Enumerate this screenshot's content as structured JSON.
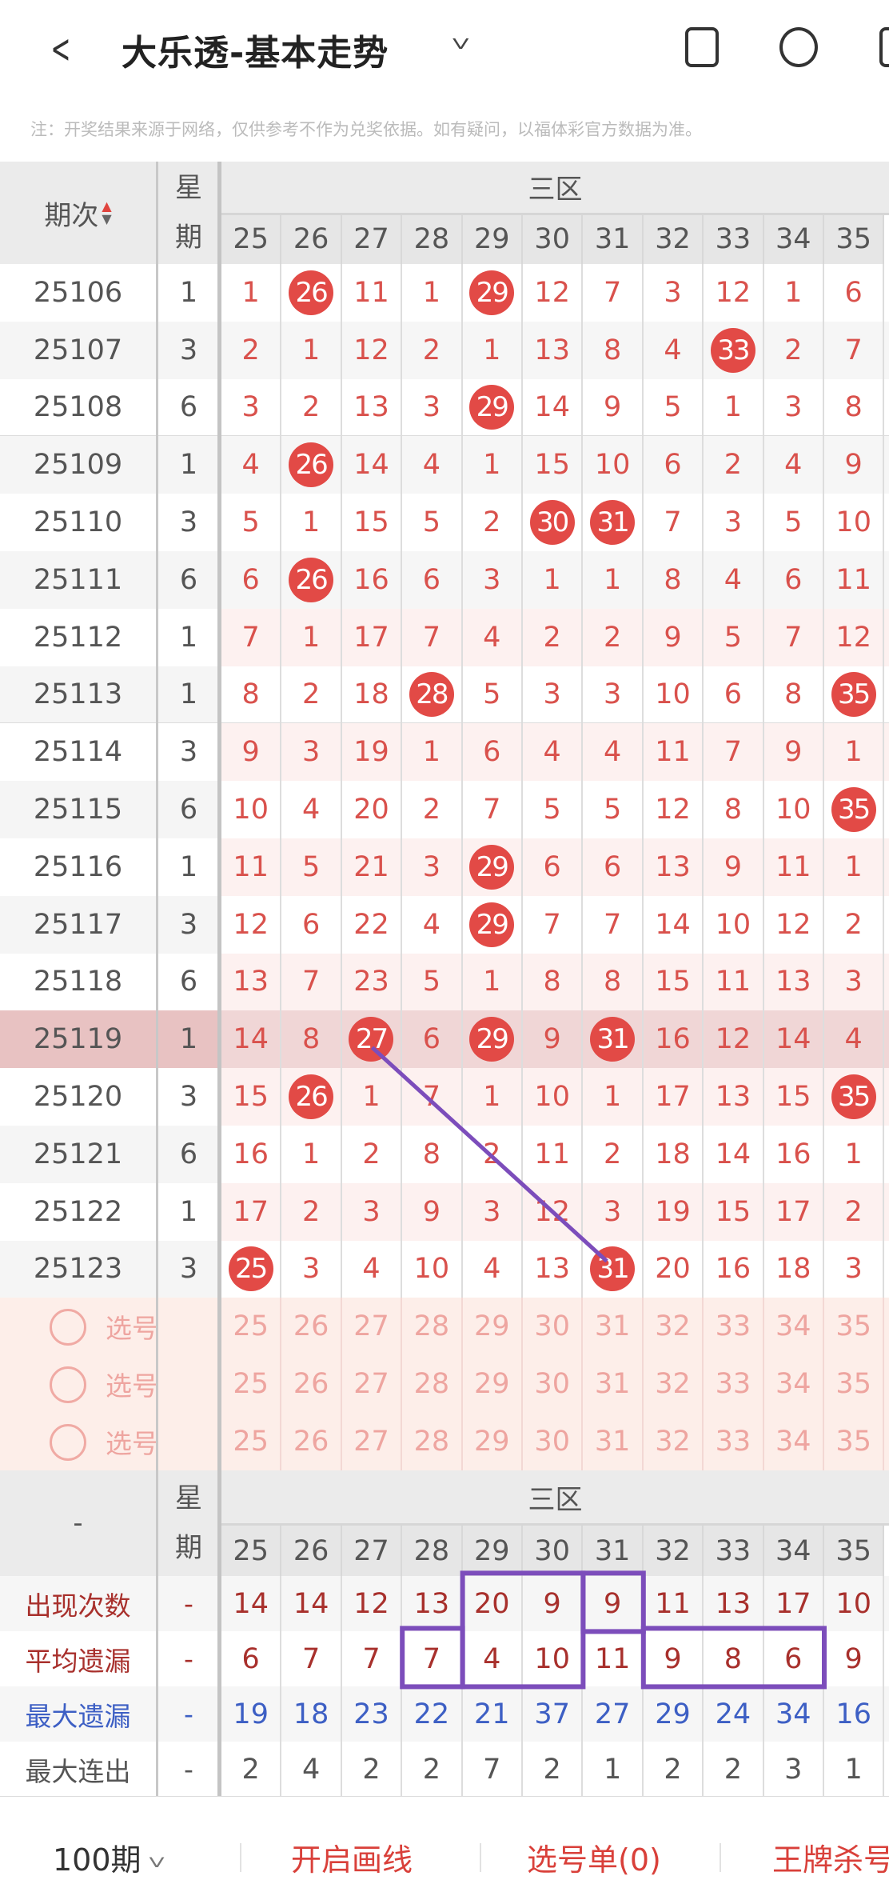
{
  "header": {
    "title": "大乐透-基本走势",
    "back_icon": "chevron-left-icon",
    "dropdown_icon": "chevron-down-icon",
    "icons": [
      "phone-rotate-icon",
      "share-icon",
      "more-icon"
    ]
  },
  "note": "注：开奖结果来源于网络，仅供参考不作为兑奖依据。如有疑问，以福体彩官方数据为准。",
  "table": {
    "period_header": "期次",
    "week_header": [
      "星",
      "期"
    ],
    "zone_header": "三区",
    "columns": [
      "25",
      "26",
      "27",
      "28",
      "29",
      "30",
      "31",
      "32",
      "33",
      "34",
      "35"
    ],
    "colors": {
      "ball": "#e24a46",
      "miss_text": "#d9514c",
      "highlight_row": "#ecc8c8",
      "trend_line": "#7c4dbb"
    },
    "highlighted_period": "25119",
    "rows": [
      {
        "period": "25106",
        "week": "1",
        "values": [
          "1",
          "26",
          "11",
          "1",
          "29",
          "12",
          "7",
          "3",
          "12",
          "1",
          "6"
        ],
        "hits": [
          1,
          4
        ]
      },
      {
        "period": "25107",
        "week": "3",
        "values": [
          "2",
          "1",
          "12",
          "2",
          "1",
          "13",
          "8",
          "4",
          "33",
          "2",
          "7"
        ],
        "hits": [
          8
        ]
      },
      {
        "period": "25108",
        "week": "6",
        "values": [
          "3",
          "2",
          "13",
          "3",
          "29",
          "14",
          "9",
          "5",
          "1",
          "3",
          "8"
        ],
        "hits": [
          4
        ]
      },
      {
        "period": "25109",
        "week": "1",
        "values": [
          "4",
          "26",
          "14",
          "4",
          "1",
          "15",
          "10",
          "6",
          "2",
          "4",
          "9"
        ],
        "hits": [
          1
        ]
      },
      {
        "period": "25110",
        "week": "3",
        "values": [
          "5",
          "1",
          "15",
          "5",
          "2",
          "30",
          "31",
          "7",
          "3",
          "5",
          "10"
        ],
        "hits": [
          5,
          6
        ]
      },
      {
        "period": "25111",
        "week": "6",
        "values": [
          "6",
          "26",
          "16",
          "6",
          "3",
          "1",
          "1",
          "8",
          "4",
          "6",
          "11"
        ],
        "hits": [
          1
        ]
      },
      {
        "period": "25112",
        "week": "1",
        "values": [
          "7",
          "1",
          "17",
          "7",
          "4",
          "2",
          "2",
          "9",
          "5",
          "7",
          "12"
        ],
        "hits": []
      },
      {
        "period": "25113",
        "week": "1",
        "values": [
          "8",
          "2",
          "18",
          "28",
          "5",
          "3",
          "3",
          "10",
          "6",
          "8",
          "35"
        ],
        "hits": [
          3,
          10
        ]
      },
      {
        "period": "25114",
        "week": "3",
        "values": [
          "9",
          "3",
          "19",
          "1",
          "6",
          "4",
          "4",
          "11",
          "7",
          "9",
          "1"
        ],
        "hits": []
      },
      {
        "period": "25115",
        "week": "6",
        "values": [
          "10",
          "4",
          "20",
          "2",
          "7",
          "5",
          "5",
          "12",
          "8",
          "10",
          "35"
        ],
        "hits": [
          10
        ]
      },
      {
        "period": "25116",
        "week": "1",
        "values": [
          "11",
          "5",
          "21",
          "3",
          "29",
          "6",
          "6",
          "13",
          "9",
          "11",
          "1"
        ],
        "hits": [
          4
        ]
      },
      {
        "period": "25117",
        "week": "3",
        "values": [
          "12",
          "6",
          "22",
          "4",
          "29",
          "7",
          "7",
          "14",
          "10",
          "12",
          "2"
        ],
        "hits": [
          4
        ]
      },
      {
        "period": "25118",
        "week": "6",
        "values": [
          "13",
          "7",
          "23",
          "5",
          "1",
          "8",
          "8",
          "15",
          "11",
          "13",
          "3"
        ],
        "hits": []
      },
      {
        "period": "25119",
        "week": "1",
        "values": [
          "14",
          "8",
          "27",
          "6",
          "29",
          "9",
          "31",
          "16",
          "12",
          "14",
          "4"
        ],
        "hits": [
          2,
          4,
          6
        ]
      },
      {
        "period": "25120",
        "week": "3",
        "values": [
          "15",
          "26",
          "1",
          "7",
          "1",
          "10",
          "1",
          "17",
          "13",
          "15",
          "35"
        ],
        "hits": [
          1,
          10
        ]
      },
      {
        "period": "25121",
        "week": "6",
        "values": [
          "16",
          "1",
          "2",
          "8",
          "2",
          "11",
          "2",
          "18",
          "14",
          "16",
          "1"
        ],
        "hits": []
      },
      {
        "period": "25122",
        "week": "1",
        "values": [
          "17",
          "2",
          "3",
          "9",
          "3",
          "12",
          "3",
          "19",
          "15",
          "17",
          "2"
        ],
        "hits": []
      },
      {
        "period": "25123",
        "week": "3",
        "values": [
          "25",
          "3",
          "4",
          "10",
          "4",
          "13",
          "31",
          "20",
          "16",
          "18",
          "3"
        ],
        "hits": [
          0,
          6
        ]
      }
    ],
    "select_rows": [
      {
        "label": "选号"
      },
      {
        "label": "选号"
      },
      {
        "label": "选号"
      }
    ],
    "stats_header": {
      "period": "-",
      "week": [
        "星",
        "期"
      ],
      "zone": "三区"
    },
    "stats": [
      {
        "label": "出现次数",
        "week": "-",
        "values": [
          "14",
          "14",
          "12",
          "13",
          "20",
          "9",
          "9",
          "11",
          "13",
          "17",
          "10"
        ],
        "color": "#a8302c"
      },
      {
        "label": "平均遗漏",
        "week": "-",
        "values": [
          "6",
          "7",
          "7",
          "7",
          "4",
          "10",
          "11",
          "9",
          "8",
          "6",
          "9"
        ],
        "color": "#a8302c"
      },
      {
        "label": "最大遗漏",
        "week": "-",
        "values": [
          "19",
          "18",
          "23",
          "22",
          "21",
          "37",
          "27",
          "29",
          "24",
          "34",
          "16"
        ],
        "color": "#3d5fc4"
      },
      {
        "label": "最大连出",
        "week": "-",
        "values": [
          "2",
          "4",
          "2",
          "2",
          "7",
          "2",
          "1",
          "2",
          "2",
          "3",
          "1"
        ],
        "color": "#555555"
      }
    ]
  },
  "bottom": {
    "period_select": "100期",
    "draw_line": "开启画线",
    "pick_list": "选号单(0)",
    "kill": "王牌杀号"
  }
}
